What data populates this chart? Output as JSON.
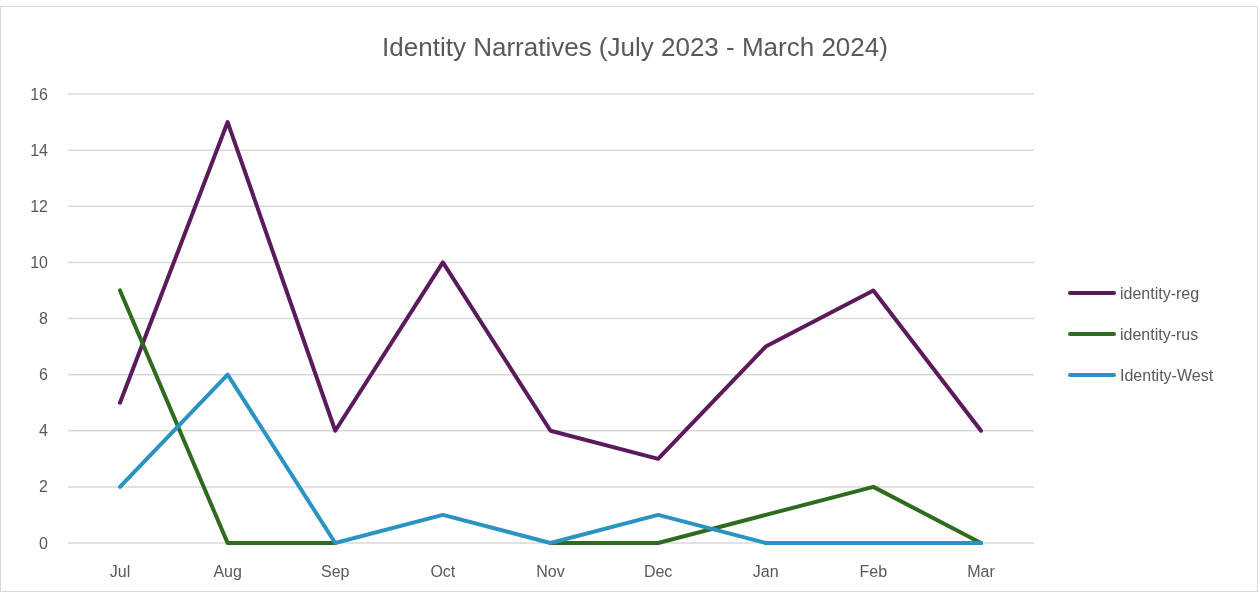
{
  "chart_data": {
    "type": "line",
    "title": "Identity Narratives (July 2023 - March 2024)",
    "categories": [
      "Jul",
      "Aug",
      "Sep",
      "Oct",
      "Nov",
      "Dec",
      "Jan",
      "Feb",
      "Mar"
    ],
    "series": [
      {
        "name": "identity-reg",
        "color": "#5b1a5b",
        "values": [
          5,
          15,
          4,
          10,
          4,
          3,
          7,
          9,
          4
        ]
      },
      {
        "name": "identity-rus",
        "color": "#2e6b1f",
        "values": [
          9,
          0,
          0,
          null,
          0,
          0,
          1,
          2,
          0
        ]
      },
      {
        "name": "Identity-West",
        "color": "#2a93c1",
        "values": [
          2,
          6,
          0,
          1,
          0,
          1,
          0,
          0,
          0
        ]
      }
    ],
    "ylim": [
      0,
      16
    ],
    "yticks": [
      0,
      2,
      4,
      6,
      8,
      10,
      12,
      14,
      16
    ],
    "grid": "y",
    "legend": "right",
    "marker": "none",
    "line_style": "solid"
  }
}
